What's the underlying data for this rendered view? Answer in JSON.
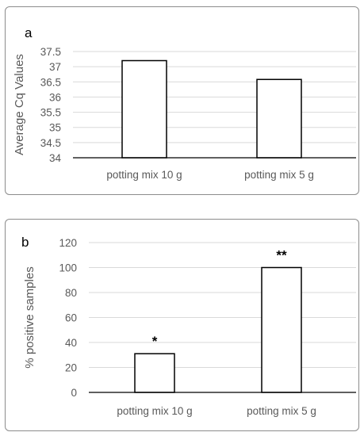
{
  "chart_data": [
    {
      "type": "bar",
      "panel_label": "a",
      "categories": [
        "potting mix 10 g",
        "potting mix 5 g"
      ],
      "values": [
        37.2,
        36.58
      ],
      "ylabel": "Average Cq Values",
      "xlabel": "",
      "ylim": [
        34,
        37.5
      ],
      "yticks": [
        "37.5",
        "37",
        "36.5",
        "36",
        "35.5",
        "35",
        "34.5",
        "34"
      ],
      "grid": true,
      "annotations": []
    },
    {
      "type": "bar",
      "panel_label": "b",
      "categories": [
        "potting mix 10 g",
        "potting mix 5 g"
      ],
      "values": [
        31,
        100
      ],
      "ylabel": "% positive samples",
      "xlabel": "",
      "ylim": [
        0,
        120
      ],
      "yticks": [
        "120",
        "100",
        "80",
        "60",
        "40",
        "20",
        "0"
      ],
      "grid": true,
      "annotations": [
        "*",
        "**"
      ]
    }
  ]
}
